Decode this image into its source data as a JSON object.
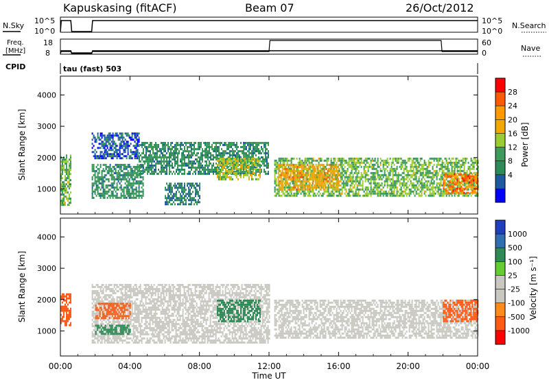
{
  "header": {
    "station": "Kapuskasing (fitACF)",
    "beam": "Beam 07",
    "date": "26/Oct/2012"
  },
  "nsky_panel": {
    "left_label": "N.Sky",
    "left_ticks": [
      "10^5",
      "10^0"
    ],
    "right_ticks": [
      "10^5",
      "10^0"
    ],
    "right_label": "N.Search"
  },
  "freq_panel": {
    "left_label_1": "Freq.",
    "left_label_2": "[MHz]",
    "left_ticks": [
      "18",
      "8"
    ],
    "right_ticks": [
      "60",
      "0"
    ],
    "right_label": "Nave"
  },
  "cpid": {
    "label": "CPID",
    "text": "tau (fast) 503"
  },
  "power_panel": {
    "ylabel": "Slant Range [km]",
    "colorbar_label": "Power [dB]",
    "colorbar_ticks": [
      "28",
      "24",
      "20",
      "16",
      "12",
      "8",
      "4"
    ],
    "colorbar_colors": [
      "#ff0000",
      "#ff5a00",
      "#ff9a00",
      "#f0a800",
      "#9acd32",
      "#3c9a5a",
      "#2e8b57",
      "#1e5aa0",
      "#0000ff"
    ]
  },
  "velocity_panel": {
    "ylabel": "Slant Range [km]",
    "colorbar_label": "Velocity [m s⁻¹]",
    "colorbar_ticks": [
      "1000",
      "500",
      "100",
      "25",
      "-25",
      "-100",
      "-500",
      "-1000"
    ],
    "colorbar_colors": [
      "#1f3fbf",
      "#2f6fb0",
      "#2e8b57",
      "#66cc33",
      "#c8c8c0",
      "#c8c8c0",
      "#ff8c1a",
      "#ff5a14",
      "#ff0000"
    ]
  },
  "x_axis": {
    "ticks": [
      "00:00",
      "04:00",
      "08:00",
      "12:00",
      "16:00",
      "20:00",
      "00:00"
    ],
    "label": "Time UT"
  },
  "chart_data": [
    {
      "type": "heatmap",
      "title": "Power",
      "ylabel": "Slant Range [km]",
      "xlabel": "Time UT",
      "x_range_hours": [
        0,
        24
      ],
      "ylim": [
        200,
        4600
      ],
      "y_ticks": [
        1000,
        2000,
        3000,
        4000
      ],
      "x_ticks": [
        "00:00",
        "04:00",
        "08:00",
        "12:00",
        "16:00",
        "20:00",
        "00:00"
      ],
      "colorbar": {
        "label": "Power [dB]",
        "min": 0,
        "max": 32,
        "ticks": [
          4,
          8,
          12,
          16,
          20,
          24,
          28
        ]
      },
      "regions": [
        {
          "t": [
            0.0,
            0.6
          ],
          "r": [
            500,
            2100
          ],
          "dB": 14
        },
        {
          "t": [
            1.8,
            4.8
          ],
          "r": [
            700,
            1800
          ],
          "dB": 10
        },
        {
          "t": [
            1.8,
            4.5
          ],
          "r": [
            2000,
            2800
          ],
          "dB": 5
        },
        {
          "t": [
            4.5,
            12.0
          ],
          "r": [
            1500,
            2500
          ],
          "dB": 10
        },
        {
          "t": [
            6.0,
            8.0
          ],
          "r": [
            500,
            1200
          ],
          "dB": 8
        },
        {
          "t": [
            9.0,
            11.5
          ],
          "r": [
            1300,
            2000
          ],
          "dB": 16
        },
        {
          "t": [
            12.3,
            24.0
          ],
          "r": [
            800,
            2000
          ],
          "dB": 14
        },
        {
          "t": [
            12.5,
            16.0
          ],
          "r": [
            1000,
            1800
          ],
          "dB": 22
        },
        {
          "t": [
            22.0,
            24.0
          ],
          "r": [
            900,
            1500
          ],
          "dB": 25
        }
      ]
    },
    {
      "type": "heatmap",
      "title": "Velocity",
      "ylabel": "Slant Range [km]",
      "xlabel": "Time UT",
      "x_range_hours": [
        0,
        24
      ],
      "ylim": [
        200,
        4600
      ],
      "y_ticks": [
        1000,
        2000,
        3000,
        4000
      ],
      "x_ticks": [
        "00:00",
        "04:00",
        "08:00",
        "12:00",
        "16:00",
        "20:00",
        "00:00"
      ],
      "colorbar": {
        "label": "Velocity [m s⁻¹]",
        "ticks": [
          1000,
          500,
          100,
          25,
          -25,
          -100,
          -500,
          -1000
        ]
      },
      "regions": [
        {
          "t": [
            0.0,
            0.6
          ],
          "r": [
            1200,
            2200
          ],
          "v": -150
        },
        {
          "t": [
            1.8,
            12.0
          ],
          "r": [
            600,
            2500
          ],
          "v": 0
        },
        {
          "t": [
            2.0,
            4.0
          ],
          "r": [
            1400,
            1900
          ],
          "v": -200
        },
        {
          "t": [
            2.0,
            4.0
          ],
          "r": [
            900,
            1200
          ],
          "v": 150
        },
        {
          "t": [
            9.0,
            11.5
          ],
          "r": [
            1300,
            2000
          ],
          "v": 150
        },
        {
          "t": [
            12.3,
            24.0
          ],
          "r": [
            800,
            2000
          ],
          "v": 0
        },
        {
          "t": [
            22.0,
            24.0
          ],
          "r": [
            1300,
            2000
          ],
          "v": -150
        }
      ]
    },
    {
      "type": "line",
      "title": "N.Sky",
      "scale": "log",
      "ylim": [
        1,
        100000
      ],
      "series": [
        {
          "name": "N.Sky",
          "points": [
            [
              0.0,
              1
            ],
            [
              0.05,
              10000
            ],
            [
              0.6,
              10000
            ],
            [
              0.65,
              1
            ],
            [
              1.8,
              1
            ],
            [
              1.85,
              10000
            ],
            [
              24.0,
              10000
            ]
          ]
        },
        {
          "name": "N.Search",
          "points": []
        }
      ]
    },
    {
      "type": "line",
      "title": "Freq./Nave",
      "left_ylim": [
        8,
        18
      ],
      "right_ylim": [
        0,
        60
      ],
      "series": [
        {
          "name": "Freq. [MHz]",
          "points": [
            [
              0.0,
              8
            ],
            [
              0.05,
              10
            ],
            [
              0.6,
              10
            ],
            [
              0.65,
              8
            ],
            [
              1.8,
              8
            ],
            [
              1.85,
              10
            ],
            [
              24.0,
              10
            ]
          ]
        },
        {
          "name": "Nave",
          "points": [
            [
              0.0,
              0
            ],
            [
              0.05,
              6
            ],
            [
              0.6,
              6
            ],
            [
              0.65,
              0
            ],
            [
              1.8,
              0
            ],
            [
              1.85,
              6
            ],
            [
              12.0,
              6
            ],
            [
              12.05,
              60
            ],
            [
              21.9,
              60
            ],
            [
              21.95,
              6
            ],
            [
              24.0,
              6
            ]
          ]
        }
      ]
    }
  ]
}
